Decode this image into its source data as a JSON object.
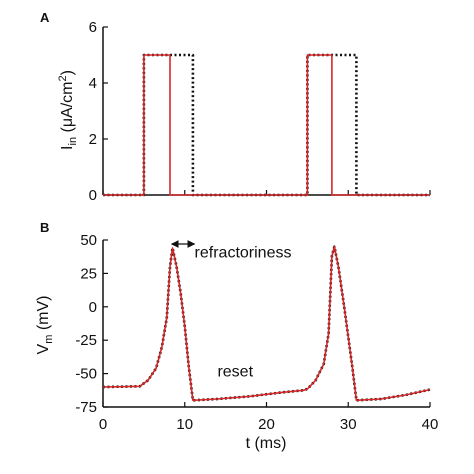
{
  "chart_data": [
    {
      "panel": "A",
      "type": "line",
      "ylabel_main": "I",
      "ylabel_sub": "in",
      "ylabel_unit_pre": " (μA/cm",
      "ylabel_unit_sup": "2",
      "ylabel_unit_post": ")",
      "xlim": [
        0,
        40
      ],
      "ylim": [
        0,
        6
      ],
      "yticks": [
        0,
        2,
        4,
        6
      ],
      "series": [
        {
          "style": "dotted",
          "color": "#111111",
          "x": [
            0,
            5,
            5,
            11,
            11,
            25,
            25,
            31,
            31,
            40
          ],
          "y": [
            0,
            0,
            5,
            5,
            0,
            0,
            5,
            5,
            0,
            0
          ]
        },
        {
          "style": "solid",
          "color": "#d62728",
          "x": [
            0,
            5,
            5,
            8.2,
            8.2,
            25,
            25,
            28,
            28,
            40
          ],
          "y": [
            0,
            0,
            5,
            5,
            0,
            0,
            5,
            5,
            0,
            0
          ]
        }
      ]
    },
    {
      "panel": "B",
      "type": "line",
      "ylabel_main": "V",
      "ylabel_sub": "m",
      "ylabel_unit_pre": " (mV)",
      "xlabel": "t (ms)",
      "xlim": [
        0,
        40
      ],
      "ylim": [
        -75,
        50
      ],
      "xticks": [
        0,
        10,
        20,
        30,
        40
      ],
      "yticks": [
        -75,
        -50,
        -25,
        0,
        25,
        50
      ],
      "annotations": [
        {
          "text": "refractoriness",
          "x": 11.2,
          "y": 37
        },
        {
          "text": "reset",
          "x": 14,
          "y": -52
        }
      ],
      "arrow": {
        "x1": 8.4,
        "x2": 11.2,
        "y": 47
      },
      "series": [
        {
          "style": "dotted",
          "color": "#111111",
          "x": [
            0,
            4.5,
            5.5,
            6.5,
            7.2,
            7.8,
            8.2,
            8.5,
            9,
            9.5,
            10,
            10.5,
            11,
            14,
            18,
            22,
            24.5,
            25,
            26,
            27,
            27.6,
            28,
            28.3,
            28.8,
            29.5,
            30.5,
            31,
            34,
            37,
            40
          ],
          "y": [
            -60,
            -59.5,
            -55,
            -46,
            -30,
            -8,
            30,
            44,
            30,
            10,
            -15,
            -45,
            -70,
            -69,
            -67,
            -64,
            -62.5,
            -61.5,
            -55,
            -43,
            -20,
            38,
            45,
            30,
            0,
            -45,
            -70,
            -69,
            -66,
            -62
          ]
        },
        {
          "style": "solid",
          "color": "#d62728",
          "x": [
            0,
            4.5,
            5.5,
            6.5,
            7.2,
            7.8,
            8.2,
            8.5,
            9,
            9.5,
            10,
            10.5,
            11,
            14,
            18,
            22,
            24.5,
            25,
            26,
            27,
            27.6,
            28,
            28.3,
            28.8,
            29.5,
            30.5,
            31,
            34,
            37,
            40
          ],
          "y": [
            -60,
            -59.5,
            -55,
            -46,
            -30,
            -8,
            30,
            44,
            30,
            10,
            -15,
            -45,
            -70,
            -69,
            -67,
            -64,
            -62.5,
            -61.5,
            -55,
            -43,
            -20,
            38,
            45,
            30,
            0,
            -45,
            -70,
            -69,
            -66,
            -62
          ]
        }
      ]
    }
  ]
}
